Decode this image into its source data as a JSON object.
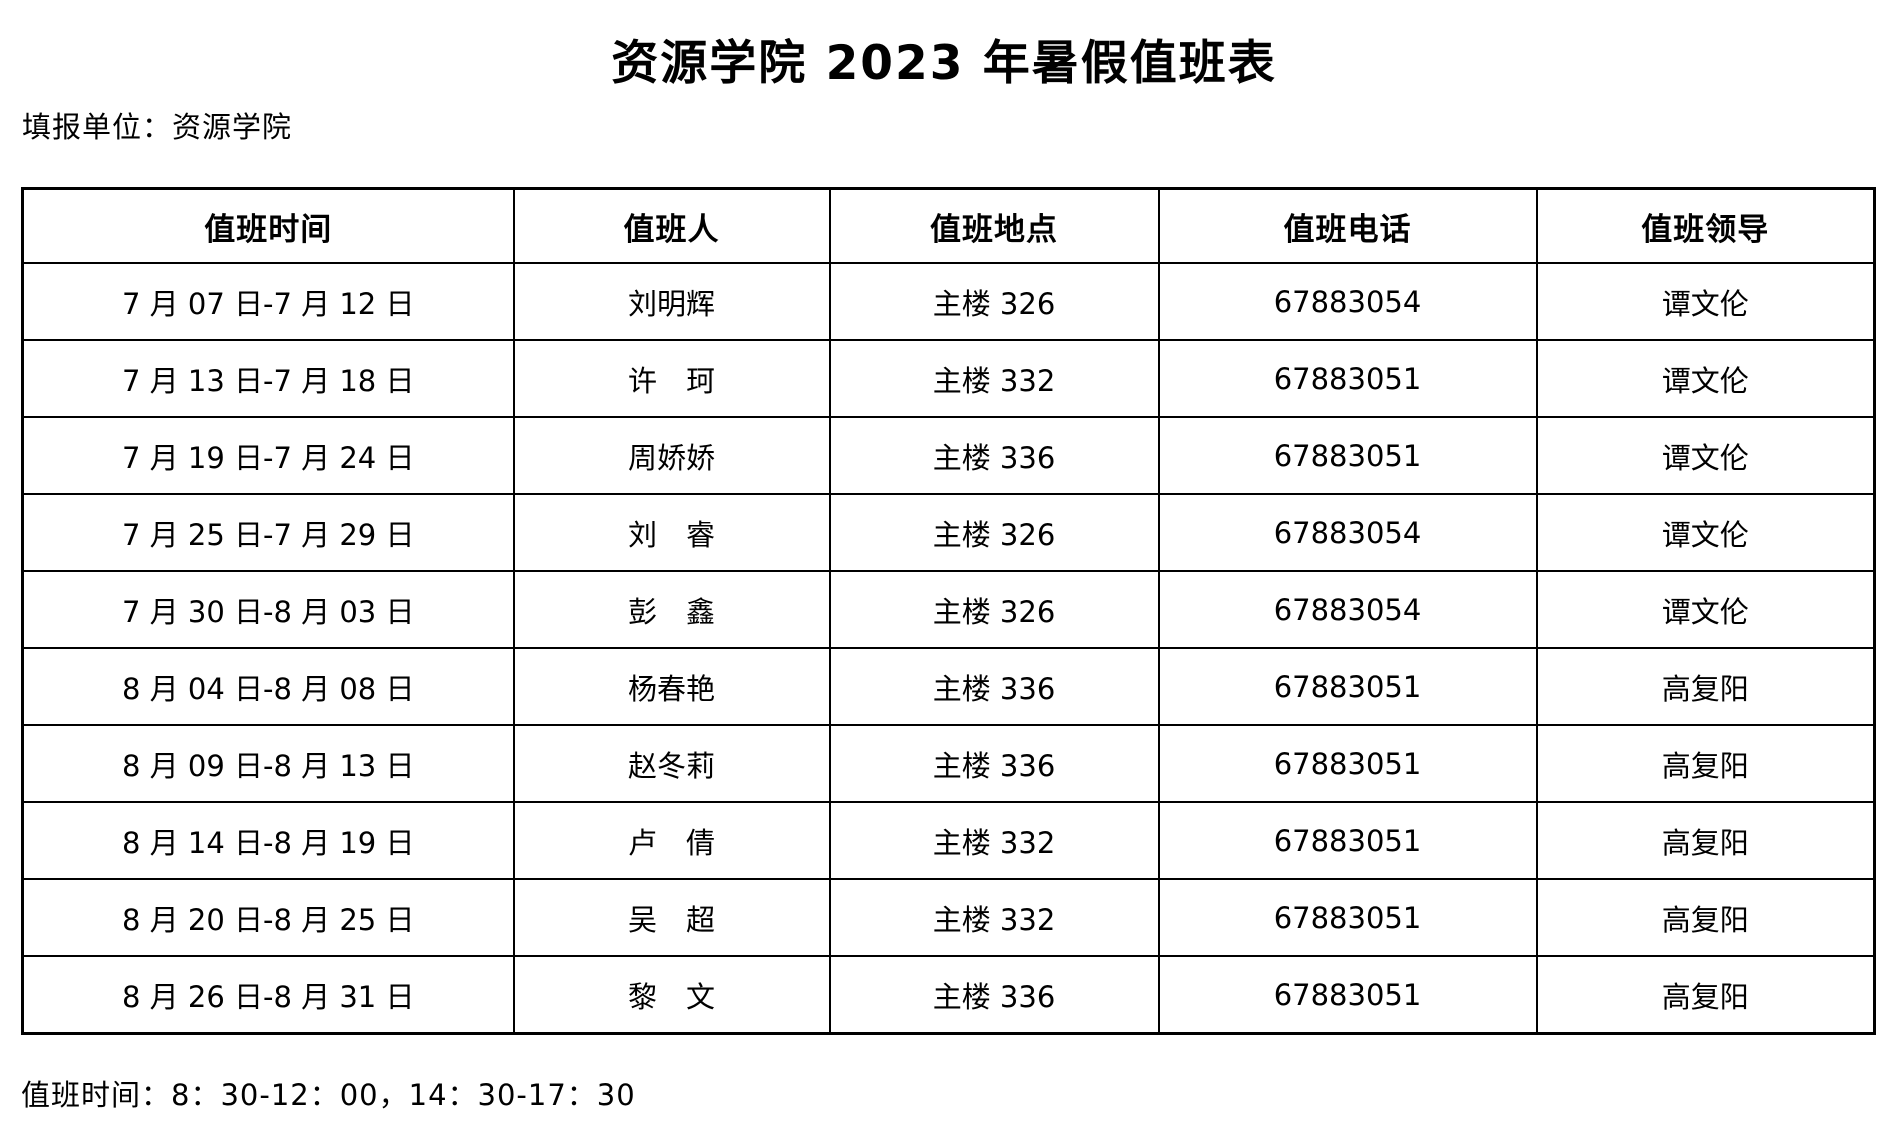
{
  "page": {
    "title": "资源学院 2023 年暑假值班表",
    "unit_label": "填报单位：资源学院",
    "footer_note": "值班时间：8：30-12：00，14：30-17：30"
  },
  "table": {
    "headers": {
      "time": "值班时间",
      "person": "值班人",
      "location": "值班地点",
      "phone": "值班电话",
      "leader": "值班领导"
    },
    "rows": [
      {
        "time": "7 月 07 日-7 月 12 日",
        "person": "刘明辉",
        "location": "主楼 326",
        "phone": "67883054",
        "leader": "谭文伦"
      },
      {
        "time": "7 月 13 日-7 月 18 日",
        "person": "许　珂",
        "location": "主楼 332",
        "phone": "67883051",
        "leader": "谭文伦"
      },
      {
        "time": "7 月 19 日-7 月 24 日",
        "person": "周娇娇",
        "location": "主楼 336",
        "phone": "67883051",
        "leader": "谭文伦"
      },
      {
        "time": "7 月 25 日-7 月 29 日",
        "person": "刘　睿",
        "location": "主楼 326",
        "phone": "67883054",
        "leader": "谭文伦"
      },
      {
        "time": "7 月 30 日-8 月 03 日",
        "person": "彭　鑫",
        "location": "主楼 326",
        "phone": "67883054",
        "leader": "谭文伦"
      },
      {
        "time": "8 月 04 日-8 月 08 日",
        "person": "杨春艳",
        "location": "主楼 336",
        "phone": "67883051",
        "leader": "高复阳"
      },
      {
        "time": "8 月 09 日-8 月 13 日",
        "person": "赵冬莉",
        "location": "主楼 336",
        "phone": "67883051",
        "leader": "高复阳"
      },
      {
        "time": "8 月 14 日-8 月 19 日",
        "person": "卢　倩",
        "location": "主楼 332",
        "phone": "67883051",
        "leader": "高复阳"
      },
      {
        "time": "8 月 20 日-8 月 25 日",
        "person": "吴　超",
        "location": "主楼 332",
        "phone": "67883051",
        "leader": "高复阳"
      },
      {
        "time": "8 月 26 日-8 月 31 日",
        "person": "黎　文",
        "location": "主楼 336",
        "phone": "67883051",
        "leader": "高复阳"
      }
    ]
  },
  "colors": {
    "text": "#000000",
    "border": "#000000",
    "background": "#ffffff"
  }
}
